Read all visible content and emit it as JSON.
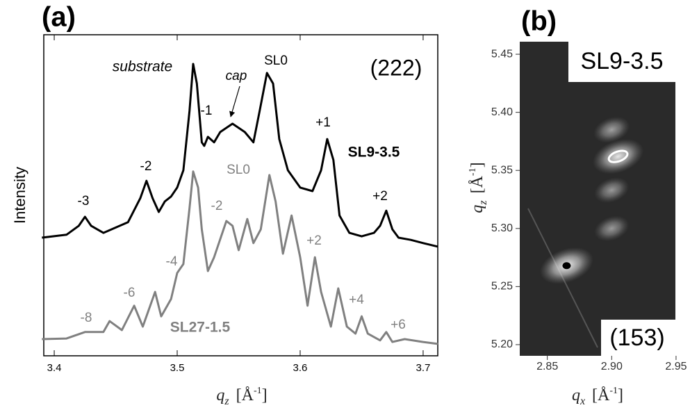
{
  "chart_data": [
    {
      "type": "line",
      "panel": "(a)",
      "ylabel": "Intensity",
      "xlabel": [
        "q",
        "z",
        "[Å",
        "-1",
        "]"
      ],
      "xlim": [
        3.3915,
        3.7119
      ],
      "xticks": [
        3.4,
        3.5,
        3.6,
        3.7
      ],
      "ylim": [
        0,
        100
      ],
      "annotations": [
        "substrate",
        "cap",
        "(222)"
      ],
      "series": [
        {
          "name": "SL9-3.5",
          "color": "#000000",
          "labels": [
            "SL0",
            "-1",
            "-2",
            "-3",
            "+1",
            "+2"
          ],
          "x": [
            3.39,
            3.41,
            3.42,
            3.425,
            3.43,
            3.44,
            3.46,
            3.47,
            3.475,
            3.48,
            3.485,
            3.49,
            3.495,
            3.5,
            3.505,
            3.51,
            3.513,
            3.516,
            3.52,
            3.522,
            3.525,
            3.53,
            3.535,
            3.545,
            3.555,
            3.562,
            3.567,
            3.573,
            3.578,
            3.583,
            3.59,
            3.6,
            3.61,
            3.617,
            3.622,
            3.627,
            3.632,
            3.64,
            3.65,
            3.66,
            3.665,
            3.67,
            3.675,
            3.68,
            3.69,
            3.7,
            3.712
          ],
          "values": [
            36.8,
            37.7,
            40.5,
            43.3,
            40.5,
            38.3,
            41.6,
            49.1,
            54.5,
            49.1,
            44.8,
            48.1,
            49.6,
            52.4,
            57.8,
            76.2,
            90.9,
            84.8,
            66.5,
            65.4,
            68.2,
            66.5,
            69.7,
            72.3,
            69.7,
            66.5,
            76.2,
            88.1,
            84.8,
            67.5,
            57.8,
            52.4,
            51.3,
            57.8,
            67.5,
            61.0,
            43.7,
            38.3,
            37.2,
            38.3,
            40.5,
            45.2,
            39.4,
            36.8,
            36.1,
            35.1,
            34.0
          ]
        },
        {
          "name": "SL27-1.5",
          "color": "#808080",
          "labels": [
            "SL0",
            "-2",
            "-4",
            "-6",
            "-8",
            "+2",
            "+4",
            "+6"
          ],
          "x": [
            3.39,
            3.41,
            3.425,
            3.44,
            3.445,
            3.455,
            3.465,
            3.472,
            3.482,
            3.487,
            3.495,
            3.5,
            3.505,
            3.51,
            3.513,
            3.517,
            3.52,
            3.525,
            3.53,
            3.54,
            3.545,
            3.55,
            3.557,
            3.562,
            3.568,
            3.575,
            3.58,
            3.586,
            3.593,
            3.6,
            3.606,
            3.612,
            3.617,
            3.625,
            3.631,
            3.638,
            3.645,
            3.65,
            3.655,
            3.665,
            3.67,
            3.675,
            3.685,
            3.7,
            3.712
          ],
          "values": [
            5.2,
            5.4,
            7.4,
            7.4,
            10.8,
            8.0,
            15.6,
            9.1,
            19.9,
            12.3,
            17.7,
            25.8,
            28.6,
            45.9,
            57.4,
            52.4,
            39.4,
            26.4,
            30.7,
            42.0,
            40.5,
            32.9,
            42.6,
            35.1,
            39.4,
            56.3,
            48.1,
            31.8,
            43.7,
            30.7,
            15.6,
            30.7,
            19.9,
            9.1,
            21.0,
            9.1,
            6.9,
            12.3,
            6.9,
            4.8,
            7.4,
            4.3,
            5.2,
            4.3,
            3.7
          ]
        }
      ]
    },
    {
      "type": "scatter",
      "panel": "(b)",
      "name": "SL9-3.5",
      "annotation": "(153)",
      "xlabel": [
        "q",
        "x",
        "[Å",
        "-1",
        "]"
      ],
      "ylabel": [
        "q",
        "z",
        "[Å",
        "-1",
        "]"
      ],
      "xlim": [
        2.8286,
        2.9495
      ],
      "ylim": [
        5.1904,
        5.4608
      ],
      "xticks": [
        2.85,
        {
          "value": 2.9,
          "label": "2.90"
        },
        2.95
      ],
      "yticks": [
        {
          "value": 5.2,
          "label": "5.20"
        },
        5.25,
        {
          "value": 5.3,
          "label": "5.30"
        },
        5.35,
        {
          "value": 5.4,
          "label": "5.40"
        },
        5.45
      ],
      "x": [
        2.865,
        2.905,
        2.9,
        2.9,
        2.9
      ],
      "values": [
        5.268,
        5.362,
        5.385,
        5.333,
        5.3
      ],
      "intensity": [
        1,
        0.9,
        0.35,
        0.3,
        0.3
      ]
    }
  ]
}
